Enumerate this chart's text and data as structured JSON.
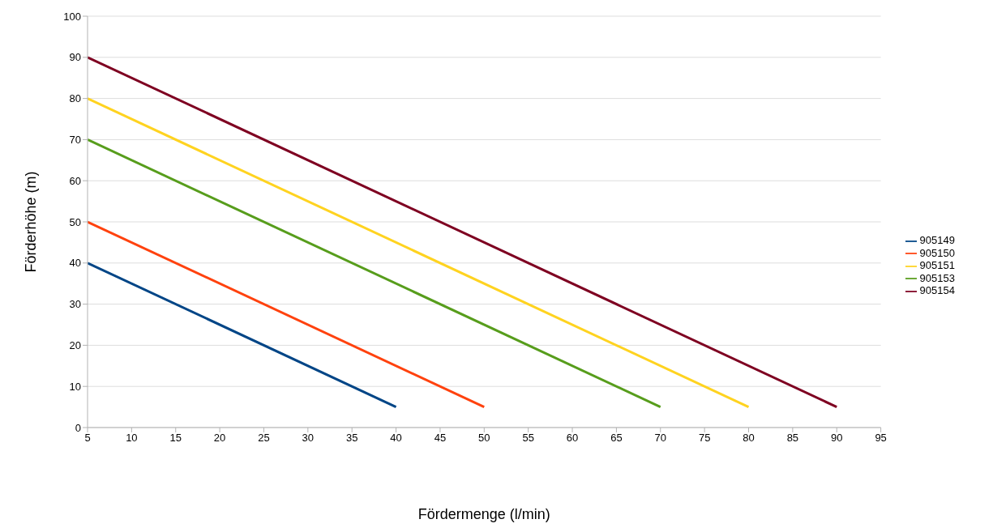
{
  "chart_data": {
    "type": "line",
    "xlabel": "Fördermenge (l/min)",
    "ylabel": "Förderhöhe (m)",
    "series": [
      {
        "name": "905149",
        "color": "#004586",
        "x": [
          5,
          40
        ],
        "values": [
          40,
          5
        ]
      },
      {
        "name": "905150",
        "color": "#ff420e",
        "x": [
          5,
          50
        ],
        "values": [
          50,
          5
        ]
      },
      {
        "name": "905151",
        "color": "#ffd320",
        "x": [
          5,
          80
        ],
        "values": [
          80,
          5
        ]
      },
      {
        "name": "905153",
        "color": "#579d1c",
        "x": [
          5,
          70
        ],
        "values": [
          70,
          5
        ]
      },
      {
        "name": "905154",
        "color": "#7e0021",
        "x": [
          5,
          90
        ],
        "values": [
          90,
          5
        ]
      }
    ],
    "xlim": [
      5,
      95
    ],
    "xticks": [
      5,
      10,
      15,
      20,
      25,
      30,
      35,
      40,
      45,
      50,
      55,
      60,
      65,
      70,
      75,
      80,
      85,
      90,
      95
    ],
    "ylim": [
      0,
      100
    ],
    "yticks": [
      0,
      10,
      20,
      30,
      40,
      50,
      60,
      70,
      80,
      90,
      100
    ],
    "grid": "y",
    "legend": "right",
    "marker": "none",
    "line_style": "solid"
  }
}
